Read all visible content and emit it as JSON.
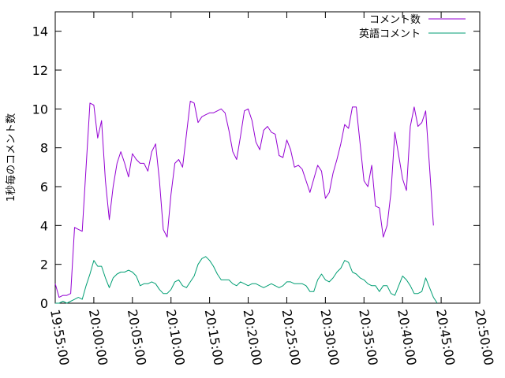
{
  "chart_data": {
    "type": "line",
    "title": "",
    "xlabel": "",
    "ylabel": "1秒毎のコメント数",
    "legend_position": "top-right",
    "grid": false,
    "xlim": [
      "19:55:00",
      "20:50:00"
    ],
    "ylim": [
      0,
      15
    ],
    "y_ticks": [
      "0",
      "2",
      "4",
      "6",
      "8",
      "10",
      "12",
      "14"
    ],
    "x_ticks": [
      "19:55:00",
      "20:00:00",
      "20:05:00",
      "20:10:00",
      "20:15:00",
      "20:20:00",
      "20:25:00",
      "20:30:00",
      "20:35:00",
      "20:40:00",
      "20:45:00",
      "20:50:00"
    ],
    "series": [
      {
        "name": "コメント数",
        "color": "#9400d3",
        "points": [
          [
            "19:55:00",
            1.0
          ],
          [
            "19:55:30",
            0.3
          ],
          [
            "19:56:00",
            0.4
          ],
          [
            "19:56:30",
            0.4
          ],
          [
            "19:57:00",
            0.5
          ],
          [
            "19:57:30",
            3.9
          ],
          [
            "19:58:00",
            3.8
          ],
          [
            "19:58:30",
            3.7
          ],
          [
            "19:59:00",
            7.0
          ],
          [
            "19:59:30",
            10.3
          ],
          [
            "20:00:00",
            10.2
          ],
          [
            "20:00:30",
            8.5
          ],
          [
            "20:01:00",
            9.4
          ],
          [
            "20:01:30",
            6.3
          ],
          [
            "20:02:00",
            4.3
          ],
          [
            "20:02:30",
            6.0
          ],
          [
            "20:03:00",
            7.2
          ],
          [
            "20:03:30",
            7.8
          ],
          [
            "20:04:00",
            7.2
          ],
          [
            "20:04:30",
            6.5
          ],
          [
            "20:05:00",
            7.7
          ],
          [
            "20:05:30",
            7.4
          ],
          [
            "20:06:00",
            7.2
          ],
          [
            "20:06:30",
            7.2
          ],
          [
            "20:07:00",
            6.8
          ],
          [
            "20:07:30",
            7.8
          ],
          [
            "20:08:00",
            8.2
          ],
          [
            "20:08:30",
            6.3
          ],
          [
            "20:09:00",
            3.8
          ],
          [
            "20:09:30",
            3.4
          ],
          [
            "20:10:00",
            5.6
          ],
          [
            "20:10:30",
            7.2
          ],
          [
            "20:11:00",
            7.4
          ],
          [
            "20:11:30",
            7.0
          ],
          [
            "20:12:00",
            8.7
          ],
          [
            "20:12:30",
            10.4
          ],
          [
            "20:13:00",
            10.3
          ],
          [
            "20:13:30",
            9.3
          ],
          [
            "20:14:00",
            9.6
          ],
          [
            "20:14:30",
            9.7
          ],
          [
            "20:15:00",
            9.8
          ],
          [
            "20:15:30",
            9.8
          ],
          [
            "20:16:00",
            9.9
          ],
          [
            "20:16:30",
            10.0
          ],
          [
            "20:17:00",
            9.8
          ],
          [
            "20:17:30",
            8.9
          ],
          [
            "20:18:00",
            7.8
          ],
          [
            "20:18:30",
            7.4
          ],
          [
            "20:19:00",
            8.6
          ],
          [
            "20:19:30",
            9.9
          ],
          [
            "20:20:00",
            10.0
          ],
          [
            "20:20:30",
            9.4
          ],
          [
            "20:21:00",
            8.3
          ],
          [
            "20:21:30",
            7.9
          ],
          [
            "20:22:00",
            8.9
          ],
          [
            "20:22:30",
            9.1
          ],
          [
            "20:23:00",
            8.8
          ],
          [
            "20:23:30",
            8.7
          ],
          [
            "20:24:00",
            7.6
          ],
          [
            "20:24:30",
            7.5
          ],
          [
            "20:25:00",
            8.4
          ],
          [
            "20:25:30",
            7.9
          ],
          [
            "20:26:00",
            7.0
          ],
          [
            "20:26:30",
            7.1
          ],
          [
            "20:27:00",
            6.9
          ],
          [
            "20:27:30",
            6.3
          ],
          [
            "20:28:00",
            5.7
          ],
          [
            "20:28:30",
            6.4
          ],
          [
            "20:29:00",
            7.1
          ],
          [
            "20:29:30",
            6.8
          ],
          [
            "20:30:00",
            5.4
          ],
          [
            "20:30:30",
            5.7
          ],
          [
            "20:31:00",
            6.7
          ],
          [
            "20:31:30",
            7.4
          ],
          [
            "20:32:00",
            8.2
          ],
          [
            "20:32:30",
            9.2
          ],
          [
            "20:33:00",
            9.0
          ],
          [
            "20:33:30",
            10.1
          ],
          [
            "20:34:00",
            10.1
          ],
          [
            "20:34:30",
            8.2
          ],
          [
            "20:35:00",
            6.3
          ],
          [
            "20:35:30",
            6.0
          ],
          [
            "20:36:00",
            7.1
          ],
          [
            "20:36:30",
            5.0
          ],
          [
            "20:37:00",
            4.9
          ],
          [
            "20:37:30",
            3.4
          ],
          [
            "20:38:00",
            4.0
          ],
          [
            "20:38:30",
            5.7
          ],
          [
            "20:39:00",
            8.8
          ],
          [
            "20:39:30",
            7.6
          ],
          [
            "20:40:00",
            6.4
          ],
          [
            "20:40:30",
            5.8
          ],
          [
            "20:41:00",
            9.1
          ],
          [
            "20:41:30",
            10.1
          ],
          [
            "20:42:00",
            9.1
          ],
          [
            "20:42:30",
            9.3
          ],
          [
            "20:43:00",
            9.9
          ],
          [
            "20:43:30",
            7.0
          ],
          [
            "20:44:00",
            4.0
          ]
        ]
      },
      {
        "name": "英語コメント",
        "color": "#009e73",
        "points": [
          [
            "19:55:00",
            0.0
          ],
          [
            "19:55:30",
            0.0
          ],
          [
            "19:56:00",
            0.1
          ],
          [
            "19:56:30",
            0.0
          ],
          [
            "19:57:00",
            0.1
          ],
          [
            "19:57:30",
            0.2
          ],
          [
            "19:58:00",
            0.3
          ],
          [
            "19:58:30",
            0.2
          ],
          [
            "19:59:00",
            0.9
          ],
          [
            "19:59:30",
            1.5
          ],
          [
            "20:00:00",
            2.2
          ],
          [
            "20:00:30",
            1.9
          ],
          [
            "20:01:00",
            1.9
          ],
          [
            "20:01:30",
            1.3
          ],
          [
            "20:02:00",
            0.8
          ],
          [
            "20:02:30",
            1.3
          ],
          [
            "20:03:00",
            1.5
          ],
          [
            "20:03:30",
            1.6
          ],
          [
            "20:04:00",
            1.6
          ],
          [
            "20:04:30",
            1.7
          ],
          [
            "20:05:00",
            1.6
          ],
          [
            "20:05:30",
            1.4
          ],
          [
            "20:06:00",
            0.9
          ],
          [
            "20:06:30",
            1.0
          ],
          [
            "20:07:00",
            1.0
          ],
          [
            "20:07:30",
            1.1
          ],
          [
            "20:08:00",
            1.0
          ],
          [
            "20:08:30",
            0.7
          ],
          [
            "20:09:00",
            0.5
          ],
          [
            "20:09:30",
            0.5
          ],
          [
            "20:10:00",
            0.7
          ],
          [
            "20:10:30",
            1.1
          ],
          [
            "20:11:00",
            1.2
          ],
          [
            "20:11:30",
            0.9
          ],
          [
            "20:12:00",
            0.8
          ],
          [
            "20:12:30",
            1.1
          ],
          [
            "20:13:00",
            1.4
          ],
          [
            "20:13:30",
            2.0
          ],
          [
            "20:14:00",
            2.3
          ],
          [
            "20:14:30",
            2.4
          ],
          [
            "20:15:00",
            2.2
          ],
          [
            "20:15:30",
            1.9
          ],
          [
            "20:16:00",
            1.5
          ],
          [
            "20:16:30",
            1.2
          ],
          [
            "20:17:00",
            1.2
          ],
          [
            "20:17:30",
            1.2
          ],
          [
            "20:18:00",
            1.0
          ],
          [
            "20:18:30",
            0.9
          ],
          [
            "20:19:00",
            1.1
          ],
          [
            "20:19:30",
            1.0
          ],
          [
            "20:20:00",
            0.9
          ],
          [
            "20:20:30",
            1.0
          ],
          [
            "20:21:00",
            1.0
          ],
          [
            "20:21:30",
            0.9
          ],
          [
            "20:22:00",
            0.8
          ],
          [
            "20:22:30",
            0.9
          ],
          [
            "20:23:00",
            1.0
          ],
          [
            "20:23:30",
            0.9
          ],
          [
            "20:24:00",
            0.8
          ],
          [
            "20:24:30",
            0.9
          ],
          [
            "20:25:00",
            1.1
          ],
          [
            "20:25:30",
            1.1
          ],
          [
            "20:26:00",
            1.0
          ],
          [
            "20:26:30",
            1.0
          ],
          [
            "20:27:00",
            1.0
          ],
          [
            "20:27:30",
            0.9
          ],
          [
            "20:28:00",
            0.6
          ],
          [
            "20:28:30",
            0.6
          ],
          [
            "20:29:00",
            1.2
          ],
          [
            "20:29:30",
            1.5
          ],
          [
            "20:30:00",
            1.2
          ],
          [
            "20:30:30",
            1.1
          ],
          [
            "20:31:00",
            1.3
          ],
          [
            "20:31:30",
            1.6
          ],
          [
            "20:32:00",
            1.8
          ],
          [
            "20:32:30",
            2.2
          ],
          [
            "20:33:00",
            2.1
          ],
          [
            "20:33:30",
            1.6
          ],
          [
            "20:34:00",
            1.5
          ],
          [
            "20:34:30",
            1.3
          ],
          [
            "20:35:00",
            1.2
          ],
          [
            "20:35:30",
            1.0
          ],
          [
            "20:36:00",
            0.9
          ],
          [
            "20:36:30",
            0.9
          ],
          [
            "20:37:00",
            0.6
          ],
          [
            "20:37:30",
            0.9
          ],
          [
            "20:38:00",
            0.9
          ],
          [
            "20:38:30",
            0.5
          ],
          [
            "20:39:00",
            0.4
          ],
          [
            "20:39:30",
            0.9
          ],
          [
            "20:40:00",
            1.4
          ],
          [
            "20:40:30",
            1.2
          ],
          [
            "20:41:00",
            0.9
          ],
          [
            "20:41:30",
            0.5
          ],
          [
            "20:42:00",
            0.5
          ],
          [
            "20:42:30",
            0.6
          ],
          [
            "20:43:00",
            1.3
          ],
          [
            "20:43:30",
            0.8
          ],
          [
            "20:44:00",
            0.3
          ],
          [
            "20:44:30",
            0.0
          ]
        ]
      }
    ]
  }
}
